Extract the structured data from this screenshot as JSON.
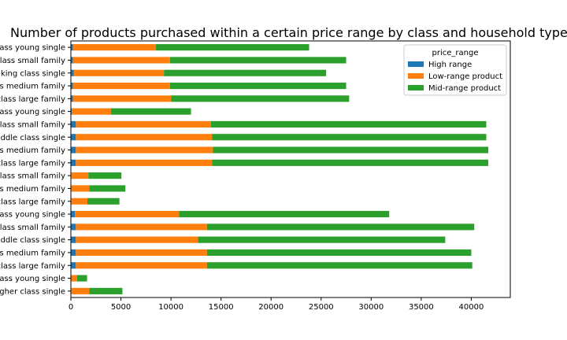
{
  "chart_data": {
    "type": "bar",
    "orientation": "horizontal",
    "stacked": true,
    "title": "Number of products purchased within a certain price range by class and household type",
    "xlabel": "",
    "ylabel": "",
    "xlim": [
      0,
      43900
    ],
    "xticks": [
      0,
      5000,
      10000,
      15000,
      20000,
      25000,
      30000,
      35000,
      40000
    ],
    "grid": false,
    "legend": {
      "title": "price_range",
      "position": "top-right"
    },
    "categories": [
      "ass young single",
      "class small family",
      "king class single",
      "s medium family",
      "class large family",
      "ass young single",
      "class small family",
      "ddle class single",
      "s medium family",
      "class large family",
      "class small family",
      "s medium family",
      "class large family",
      "ass young single",
      "class small family",
      "ddle class single",
      "s medium family",
      "class large family",
      "ass young single",
      "gher class single"
    ],
    "series": [
      {
        "name": "High range",
        "color": "#1f77b4",
        "values": [
          200,
          200,
          300,
          200,
          200,
          100,
          500,
          500,
          500,
          500,
          50,
          50,
          50,
          400,
          500,
          500,
          500,
          500,
          20,
          50
        ]
      },
      {
        "name": "Low-range product",
        "color": "#ff7f0e",
        "values": [
          8300,
          9700,
          9000,
          9700,
          9800,
          3900,
          13500,
          13600,
          13700,
          13600,
          1700,
          1800,
          1600,
          10400,
          13100,
          12200,
          13100,
          13100,
          600,
          1800
        ]
      },
      {
        "name": "Mid-range product",
        "color": "#2ca02c",
        "values": [
          15300,
          17600,
          16200,
          17600,
          17800,
          8000,
          27500,
          27400,
          27500,
          27600,
          3300,
          3600,
          3200,
          21000,
          26700,
          24700,
          26400,
          26500,
          1000,
          3300
        ]
      }
    ]
  }
}
